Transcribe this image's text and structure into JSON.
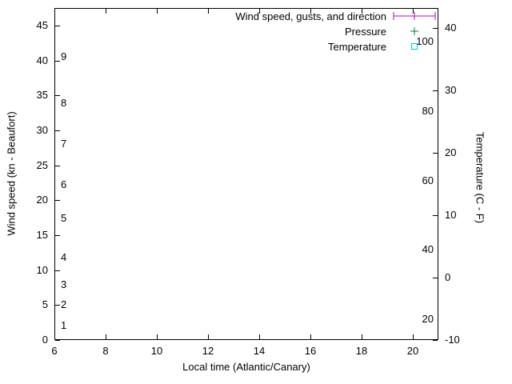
{
  "chart_data": {
    "type": "line",
    "title": "",
    "xlabel": "Local time (Atlantic/Canary)",
    "ylabel_left": "Wind speed (kn - Beaufort)",
    "ylabel_right": "Temperature (C - F)",
    "grid": false,
    "legend_position": "top-right-inside",
    "x_range": [
      6,
      21
    ],
    "x_ticks": [
      6,
      8,
      10,
      12,
      14,
      16,
      18,
      20
    ],
    "y_left_range_kn": [
      0,
      47.5
    ],
    "y_left_ticks_kn": [
      0,
      5,
      10,
      15,
      20,
      25,
      30,
      35,
      40,
      45
    ],
    "beaufort_scale": [
      {
        "label": "1",
        "knots": 2.1
      },
      {
        "label": "2",
        "knots": 5.0
      },
      {
        "label": "3",
        "knots": 7.9
      },
      {
        "label": "4",
        "knots": 11.8
      },
      {
        "label": "5",
        "knots": 17.4
      },
      {
        "label": "6",
        "knots": 22.2
      },
      {
        "label": "7",
        "knots": 28.0
      },
      {
        "label": "8",
        "knots": 33.9
      },
      {
        "label": "9",
        "knots": 40.5
      }
    ],
    "y_right_range_c": [
      -10,
      43.2
    ],
    "y_right_ticks_c": [
      -10,
      0,
      10,
      20,
      30,
      40
    ],
    "fahrenheit_labels": [
      20,
      40,
      60,
      80,
      100
    ],
    "series": [
      {
        "name": "Wind speed, gusts, and direction",
        "marker": "errorbar",
        "color": "#c000c0",
        "points": []
      },
      {
        "name": "Pressure",
        "marker": "plus",
        "color": "#008040",
        "points": []
      },
      {
        "name": "Temperature",
        "marker": "open-square",
        "color": "#00bfff",
        "points": []
      }
    ]
  }
}
